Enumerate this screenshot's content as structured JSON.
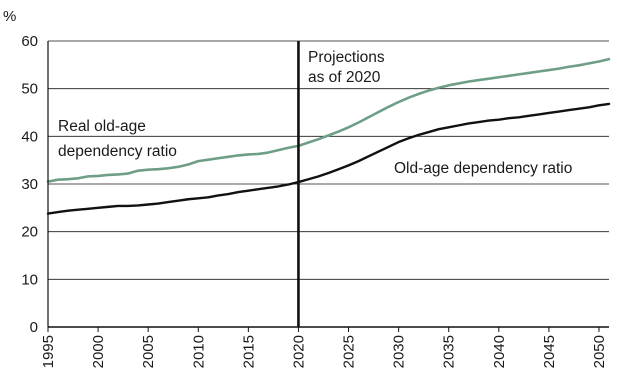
{
  "chart_data": {
    "type": "line",
    "title": "",
    "unit_label": "%",
    "xlabel": "",
    "ylabel": "",
    "xlim": [
      1995,
      2051
    ],
    "ylim": [
      0,
      60
    ],
    "x_ticks": [
      1995,
      2000,
      2005,
      2010,
      2015,
      2020,
      2025,
      2030,
      2035,
      2040,
      2045,
      2050
    ],
    "y_ticks": [
      0,
      10,
      20,
      30,
      40,
      50,
      60
    ],
    "grid": "horizontal",
    "legend": "none (inline series labels)",
    "projection_marker": {
      "x": 2020,
      "label_line1": "Projections",
      "label_line2": "as of 2020"
    },
    "series": [
      {
        "name": "Real old-age dependency ratio",
        "label_line1": "Real old-age",
        "label_line2": "dependency ratio",
        "color": "#6f9e86",
        "x": [
          1995,
          1996,
          1997,
          1998,
          1999,
          2000,
          2001,
          2002,
          2003,
          2004,
          2005,
          2006,
          2007,
          2008,
          2009,
          2010,
          2011,
          2012,
          2013,
          2014,
          2015,
          2016,
          2017,
          2018,
          2019,
          2020,
          2021,
          2022,
          2023,
          2024,
          2025,
          2026,
          2027,
          2028,
          2029,
          2030,
          2031,
          2032,
          2033,
          2034,
          2035,
          2036,
          2037,
          2038,
          2039,
          2040,
          2041,
          2042,
          2043,
          2044,
          2045,
          2046,
          2047,
          2048,
          2049,
          2050,
          2051
        ],
        "y": [
          30.5,
          30.9,
          31.0,
          31.2,
          31.6,
          31.7,
          31.9,
          32.0,
          32.2,
          32.8,
          33.0,
          33.1,
          33.3,
          33.6,
          34.1,
          34.8,
          35.1,
          35.4,
          35.7,
          36.0,
          36.2,
          36.3,
          36.6,
          37.1,
          37.6,
          38.0,
          38.7,
          39.4,
          40.2,
          41.0,
          41.9,
          42.9,
          44.0,
          45.1,
          46.2,
          47.2,
          48.1,
          48.9,
          49.6,
          50.2,
          50.7,
          51.1,
          51.5,
          51.8,
          52.1,
          52.4,
          52.7,
          53.0,
          53.3,
          53.6,
          53.9,
          54.2,
          54.6,
          54.9,
          55.3,
          55.7,
          56.2
        ]
      },
      {
        "name": "Old-age dependency ratio",
        "label_line1": "Old-age dependency ratio",
        "color": "#111111",
        "x": [
          1995,
          1996,
          1997,
          1998,
          1999,
          2000,
          2001,
          2002,
          2003,
          2004,
          2005,
          2006,
          2007,
          2008,
          2009,
          2010,
          2011,
          2012,
          2013,
          2014,
          2015,
          2016,
          2017,
          2018,
          2019,
          2020,
          2021,
          2022,
          2023,
          2024,
          2025,
          2026,
          2027,
          2028,
          2029,
          2030,
          2031,
          2032,
          2033,
          2034,
          2035,
          2036,
          2037,
          2038,
          2039,
          2040,
          2041,
          2042,
          2043,
          2044,
          2045,
          2046,
          2047,
          2048,
          2049,
          2050,
          2051
        ],
        "y": [
          23.8,
          24.1,
          24.4,
          24.6,
          24.8,
          25.0,
          25.2,
          25.4,
          25.4,
          25.5,
          25.7,
          25.9,
          26.2,
          26.5,
          26.8,
          27.0,
          27.2,
          27.6,
          27.9,
          28.3,
          28.6,
          28.9,
          29.2,
          29.5,
          29.9,
          30.4,
          31.0,
          31.6,
          32.3,
          33.1,
          33.9,
          34.8,
          35.8,
          36.8,
          37.8,
          38.8,
          39.6,
          40.3,
          40.9,
          41.5,
          41.9,
          42.3,
          42.7,
          43.0,
          43.3,
          43.5,
          43.8,
          44.0,
          44.3,
          44.6,
          44.9,
          45.2,
          45.5,
          45.8,
          46.1,
          46.5,
          46.8
        ]
      }
    ],
    "colors": {
      "axis": "#111111",
      "grid": "#1a1a1a",
      "projection_line": "#111111"
    }
  }
}
